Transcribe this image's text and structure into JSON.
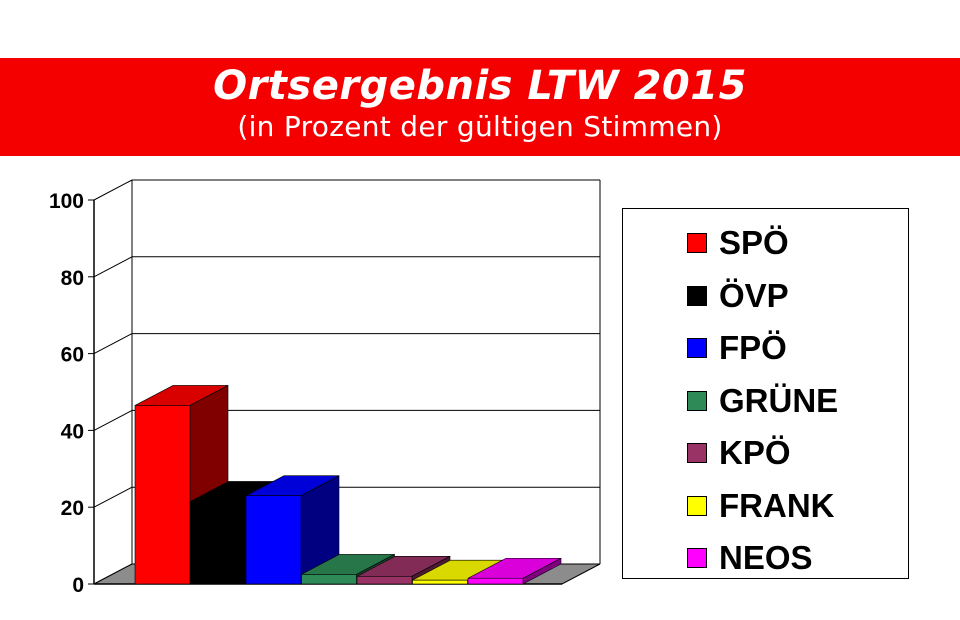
{
  "banner": {
    "title": "Ortsergebnis LTW 2015",
    "subtitle": "(in Prozent der gültigen Stimmen)"
  },
  "chart_data": {
    "type": "bar",
    "title": "Ortsergebnis LTW 2015",
    "subtitle": "(in Prozent der gültigen Stimmen)",
    "categories": [
      "SPÖ",
      "ÖVP",
      "FPÖ",
      "GRÜNE",
      "KPÖ",
      "FRANK",
      "NEOS"
    ],
    "values": [
      46.5,
      21.5,
      23,
      2.5,
      2,
      1,
      1.5
    ],
    "colors": [
      "#ff0000",
      "#000000",
      "#0000ff",
      "#2e8b57",
      "#993366",
      "#ffff00",
      "#ff00ff"
    ],
    "ylim": [
      0,
      100
    ],
    "yticks": [
      "0",
      "20",
      "40",
      "60",
      "80",
      "100"
    ],
    "grid": true,
    "legend_position": "right",
    "three_d": true
  }
}
